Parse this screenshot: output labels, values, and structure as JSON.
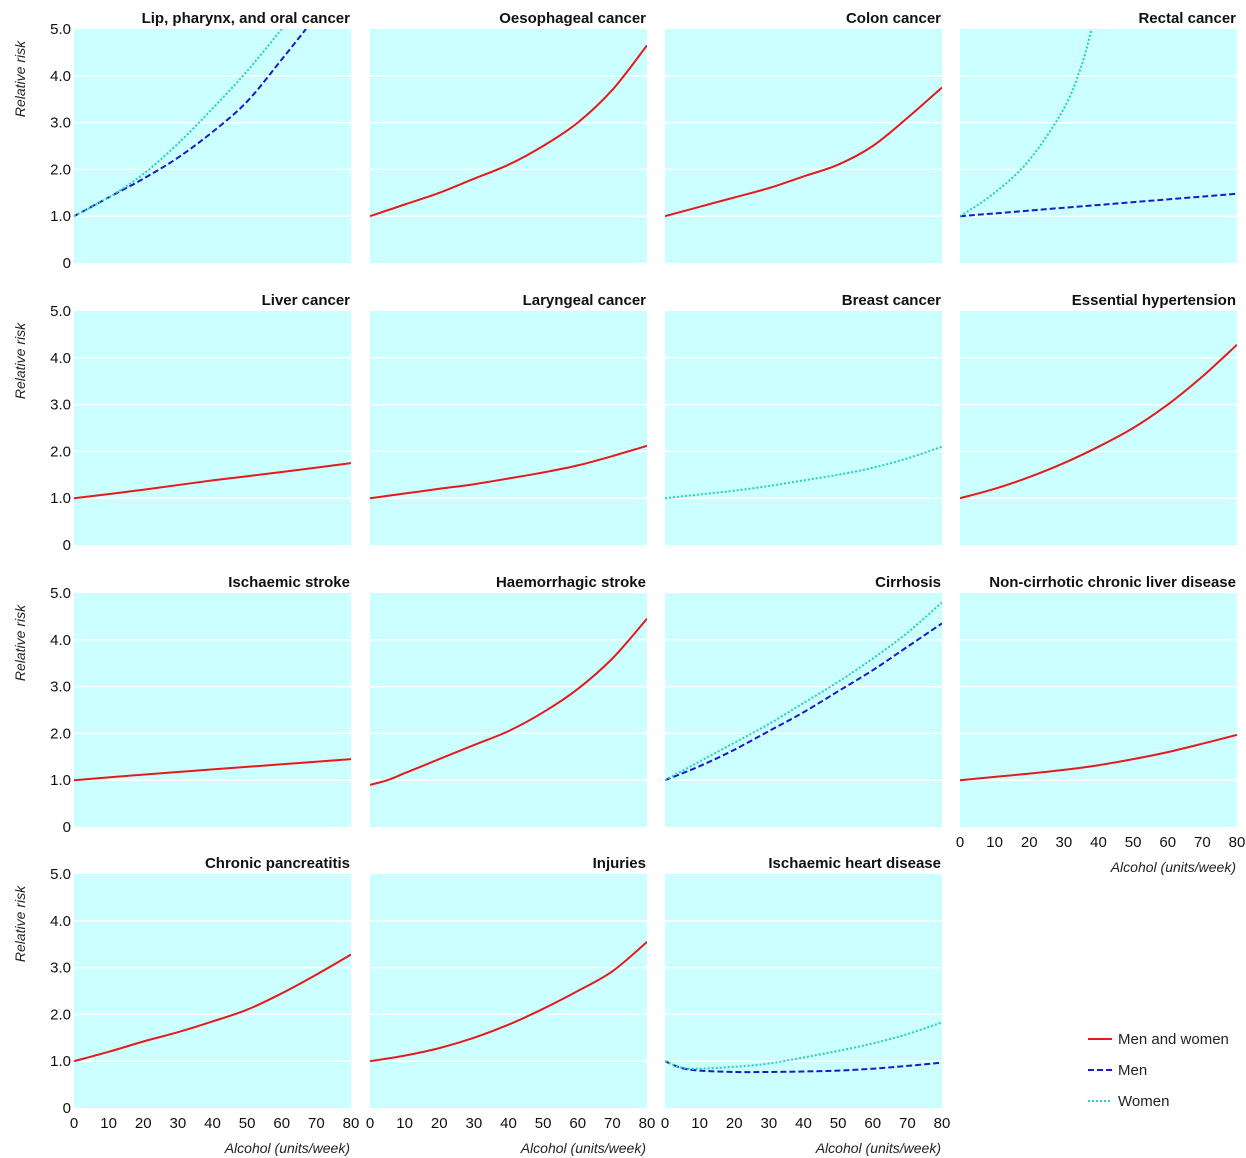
{
  "colors": {
    "panel_bg": "#ccffff",
    "grid": "#ffffff",
    "men_and_women": "#e41a1c",
    "men": "#1a1ac8",
    "women": "#22d0c0"
  },
  "legend": [
    {
      "key": "men_and_women",
      "label": "Men and women",
      "style": "solid"
    },
    {
      "key": "men",
      "label": "Men",
      "style": "dashed"
    },
    {
      "key": "women",
      "label": "Women",
      "style": "dotted"
    }
  ],
  "axes": {
    "ylabel": "Relative risk",
    "xlabel": "Alcohol (units/week)",
    "yticks": [
      "0",
      "1.0",
      "2.0",
      "3.0",
      "4.0",
      "5.0"
    ],
    "xticks": [
      "0",
      "10",
      "20",
      "30",
      "40",
      "50",
      "60",
      "70",
      "80"
    ],
    "ylim": [
      0,
      5
    ],
    "xlim": [
      0,
      80
    ]
  },
  "chart_data": [
    {
      "type": "line",
      "title": "Lip, pharynx, and oral cancer",
      "xlim": [
        0,
        80
      ],
      "ylim": [
        0,
        5
      ],
      "series": [
        {
          "name": "Men",
          "key": "men",
          "x": [
            0,
            10,
            20,
            30,
            40,
            50,
            60,
            67
          ],
          "y": [
            1.0,
            1.4,
            1.8,
            2.25,
            2.8,
            3.45,
            4.35,
            5.0
          ]
        },
        {
          "name": "Women",
          "key": "women",
          "x": [
            0,
            10,
            20,
            30,
            40,
            50,
            60
          ],
          "y": [
            1.0,
            1.4,
            1.9,
            2.55,
            3.3,
            4.1,
            5.0
          ]
        }
      ]
    },
    {
      "type": "line",
      "title": "Oesophageal cancer",
      "xlim": [
        0,
        80
      ],
      "ylim": [
        0,
        5
      ],
      "series": [
        {
          "name": "Men and women",
          "key": "men_and_women",
          "x": [
            0,
            10,
            20,
            30,
            40,
            50,
            60,
            70,
            80
          ],
          "y": [
            1.0,
            1.25,
            1.5,
            1.8,
            2.1,
            2.5,
            3.0,
            3.7,
            4.65
          ]
        }
      ]
    },
    {
      "type": "line",
      "title": "Colon cancer",
      "xlim": [
        0,
        80
      ],
      "ylim": [
        0,
        5
      ],
      "series": [
        {
          "name": "Men and women",
          "key": "men_and_women",
          "x": [
            0,
            10,
            20,
            30,
            40,
            50,
            60,
            70,
            80
          ],
          "y": [
            1.0,
            1.2,
            1.4,
            1.6,
            1.85,
            2.1,
            2.5,
            3.1,
            3.75
          ]
        }
      ]
    },
    {
      "type": "line",
      "title": "Rectal cancer",
      "xlim": [
        0,
        80
      ],
      "ylim": [
        0,
        5
      ],
      "series": [
        {
          "name": "Men",
          "key": "men",
          "x": [
            0,
            20,
            40,
            60,
            80
          ],
          "y": [
            1.0,
            1.12,
            1.24,
            1.36,
            1.48
          ]
        },
        {
          "name": "Women",
          "key": "women",
          "x": [
            0,
            10,
            20,
            30,
            35,
            38
          ],
          "y": [
            1.0,
            1.5,
            2.2,
            3.3,
            4.2,
            5.0
          ]
        }
      ]
    },
    {
      "type": "line",
      "title": "Liver cancer",
      "xlim": [
        0,
        80
      ],
      "ylim": [
        0,
        5
      ],
      "series": [
        {
          "name": "Men and women",
          "key": "men_and_women",
          "x": [
            0,
            20,
            40,
            60,
            80
          ],
          "y": [
            1.0,
            1.18,
            1.38,
            1.56,
            1.75
          ]
        }
      ]
    },
    {
      "type": "line",
      "title": "Laryngeal cancer",
      "xlim": [
        0,
        80
      ],
      "ylim": [
        0,
        5
      ],
      "series": [
        {
          "name": "Men and women",
          "key": "men_and_women",
          "x": [
            0,
            10,
            20,
            30,
            40,
            50,
            60,
            70,
            80
          ],
          "y": [
            1.0,
            1.1,
            1.2,
            1.3,
            1.42,
            1.55,
            1.7,
            1.9,
            2.12
          ]
        }
      ]
    },
    {
      "type": "line",
      "title": "Breast cancer",
      "xlim": [
        0,
        80
      ],
      "ylim": [
        0,
        5
      ],
      "series": [
        {
          "name": "Women",
          "key": "women",
          "x": [
            0,
            10,
            20,
            30,
            40,
            50,
            60,
            70,
            80
          ],
          "y": [
            1.0,
            1.08,
            1.16,
            1.26,
            1.38,
            1.5,
            1.65,
            1.85,
            2.1
          ]
        }
      ]
    },
    {
      "type": "line",
      "title": "Essential hypertension",
      "xlim": [
        0,
        80
      ],
      "ylim": [
        0,
        5
      ],
      "series": [
        {
          "name": "Men and women",
          "key": "men_and_women",
          "x": [
            0,
            10,
            20,
            30,
            40,
            50,
            60,
            70,
            80
          ],
          "y": [
            1.0,
            1.2,
            1.45,
            1.75,
            2.1,
            2.5,
            3.0,
            3.6,
            4.28
          ]
        }
      ]
    },
    {
      "type": "line",
      "title": "Ischaemic stroke",
      "xlim": [
        0,
        80
      ],
      "ylim": [
        0,
        5
      ],
      "series": [
        {
          "name": "Men and women",
          "key": "men_and_women",
          "x": [
            0,
            20,
            40,
            60,
            80
          ],
          "y": [
            1.0,
            1.12,
            1.23,
            1.34,
            1.45
          ]
        }
      ]
    },
    {
      "type": "line",
      "title": "Haemorrhagic stroke",
      "xlim": [
        0,
        80
      ],
      "ylim": [
        0,
        5
      ],
      "series": [
        {
          "name": "Men and women",
          "key": "men_and_women",
          "x": [
            0,
            5,
            10,
            20,
            30,
            40,
            50,
            60,
            70,
            80
          ],
          "y": [
            0.9,
            1.0,
            1.15,
            1.45,
            1.75,
            2.05,
            2.45,
            2.95,
            3.6,
            4.45
          ]
        }
      ]
    },
    {
      "type": "line",
      "title": "Cirrhosis",
      "xlim": [
        0,
        80
      ],
      "ylim": [
        0,
        5
      ],
      "series": [
        {
          "name": "Men",
          "key": "men",
          "x": [
            0,
            10,
            20,
            30,
            40,
            50,
            60,
            70,
            80
          ],
          "y": [
            1.0,
            1.3,
            1.65,
            2.05,
            2.45,
            2.9,
            3.35,
            3.85,
            4.35
          ]
        },
        {
          "name": "Women",
          "key": "women",
          "x": [
            0,
            10,
            20,
            30,
            40,
            50,
            60,
            70,
            80
          ],
          "y": [
            1.0,
            1.4,
            1.8,
            2.2,
            2.65,
            3.1,
            3.6,
            4.15,
            4.8
          ]
        }
      ]
    },
    {
      "type": "line",
      "title": "Non-cirrhotic chronic liver disease",
      "xlim": [
        0,
        80
      ],
      "ylim": [
        0,
        5
      ],
      "series": [
        {
          "name": "Men and women",
          "key": "men_and_women",
          "x": [
            0,
            10,
            20,
            30,
            40,
            50,
            60,
            70,
            80
          ],
          "y": [
            1.0,
            1.07,
            1.14,
            1.22,
            1.32,
            1.45,
            1.6,
            1.78,
            1.97
          ]
        }
      ]
    },
    {
      "type": "line",
      "title": "Chronic pancreatitis",
      "xlim": [
        0,
        80
      ],
      "ylim": [
        0,
        5
      ],
      "series": [
        {
          "name": "Men and women",
          "key": "men_and_women",
          "x": [
            0,
            10,
            20,
            30,
            40,
            50,
            60,
            70,
            80
          ],
          "y": [
            1.0,
            1.2,
            1.42,
            1.62,
            1.85,
            2.1,
            2.45,
            2.85,
            3.28
          ]
        }
      ]
    },
    {
      "type": "line",
      "title": "Injuries",
      "xlim": [
        0,
        80
      ],
      "ylim": [
        0,
        5
      ],
      "series": [
        {
          "name": "Men and women",
          "key": "men_and_women",
          "x": [
            0,
            10,
            20,
            30,
            40,
            50,
            60,
            70,
            80
          ],
          "y": [
            1.0,
            1.12,
            1.28,
            1.5,
            1.78,
            2.12,
            2.5,
            2.92,
            3.55
          ]
        }
      ]
    },
    {
      "type": "line",
      "title": "Ischaemic heart disease",
      "xlim": [
        0,
        80
      ],
      "ylim": [
        0,
        5
      ],
      "series": [
        {
          "name": "Men",
          "key": "men",
          "x": [
            0,
            5,
            10,
            20,
            30,
            40,
            50,
            60,
            70,
            80
          ],
          "y": [
            1.0,
            0.85,
            0.8,
            0.77,
            0.77,
            0.78,
            0.8,
            0.84,
            0.9,
            0.97
          ]
        },
        {
          "name": "Women",
          "key": "women",
          "x": [
            0,
            5,
            10,
            20,
            30,
            40,
            50,
            60,
            70,
            80
          ],
          "y": [
            1.0,
            0.86,
            0.84,
            0.88,
            0.95,
            1.08,
            1.22,
            1.38,
            1.58,
            1.83
          ]
        }
      ]
    }
  ]
}
